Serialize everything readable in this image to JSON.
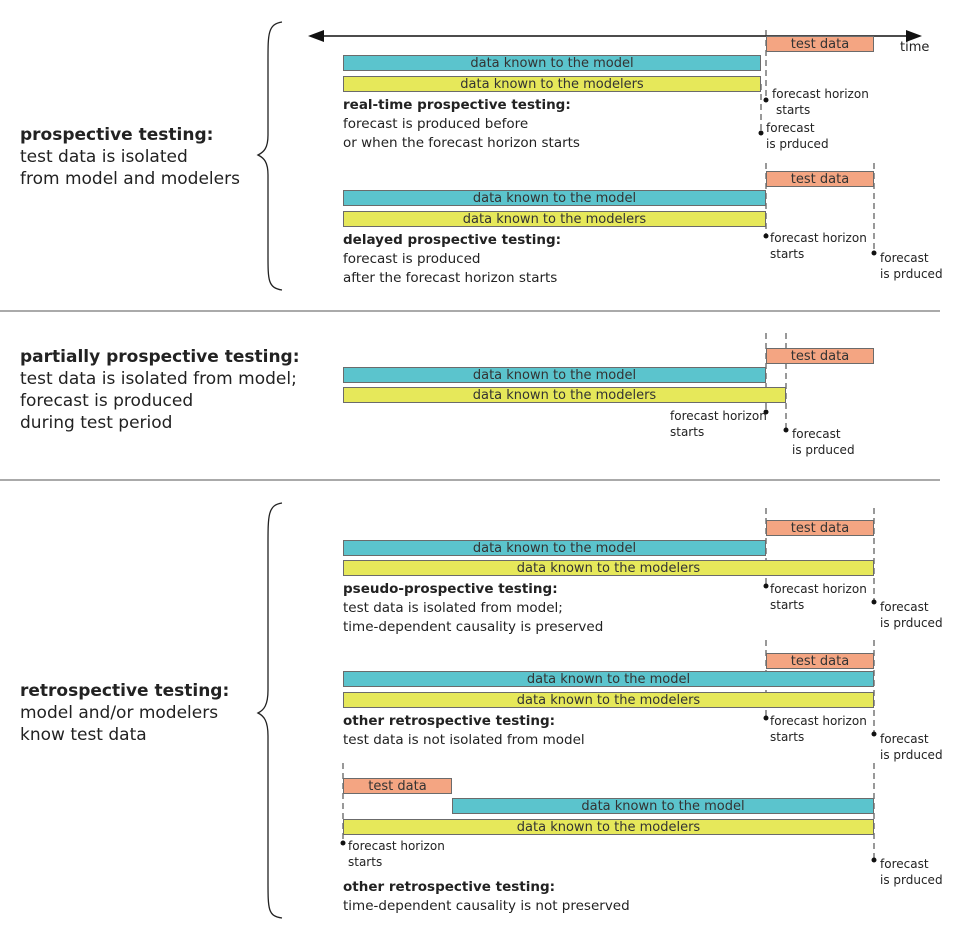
{
  "time_label": "time",
  "bar_labels": {
    "model": "data known to the model",
    "modelers": "data known to the modelers",
    "test": "test data"
  },
  "markers": {
    "horizon": [
      "forecast horizon",
      "starts"
    ],
    "produced": [
      "forecast",
      "is prduced"
    ]
  },
  "sections": {
    "prospective": {
      "title": "prospective testing:",
      "lines": [
        "test data is isolated",
        "from model and modelers"
      ]
    },
    "partial": {
      "title": "partially prospective testing:",
      "lines": [
        "test data is isolated from model;",
        "forecast is produced",
        "during test period"
      ]
    },
    "retrospective": {
      "title": "retrospective testing:",
      "lines": [
        "model and/or modelers",
        "know test data"
      ]
    }
  },
  "scenarios": {
    "realtime": {
      "title": "real-time prospective testing:",
      "lines": [
        "forecast is produced before",
        "or when the forecast horizon starts"
      ]
    },
    "delayed": {
      "title": "delayed prospective testing:",
      "lines": [
        "forecast is produced",
        "after the forecast horizon starts"
      ]
    },
    "pseudo": {
      "title": "pseudo-prospective testing:",
      "lines": [
        "test data is isolated from model;",
        "time-dependent causality is preserved"
      ]
    },
    "other1": {
      "title": "other retrospective testing:",
      "lines": [
        "test data is not isolated from model"
      ]
    },
    "other2": {
      "title": "other retrospective testing:",
      "lines": [
        "time-dependent causality is not preserved"
      ]
    }
  },
  "colors": {
    "model": "#5bc4cd",
    "modelers": "#e6e85a",
    "test": "#f4a582"
  }
}
